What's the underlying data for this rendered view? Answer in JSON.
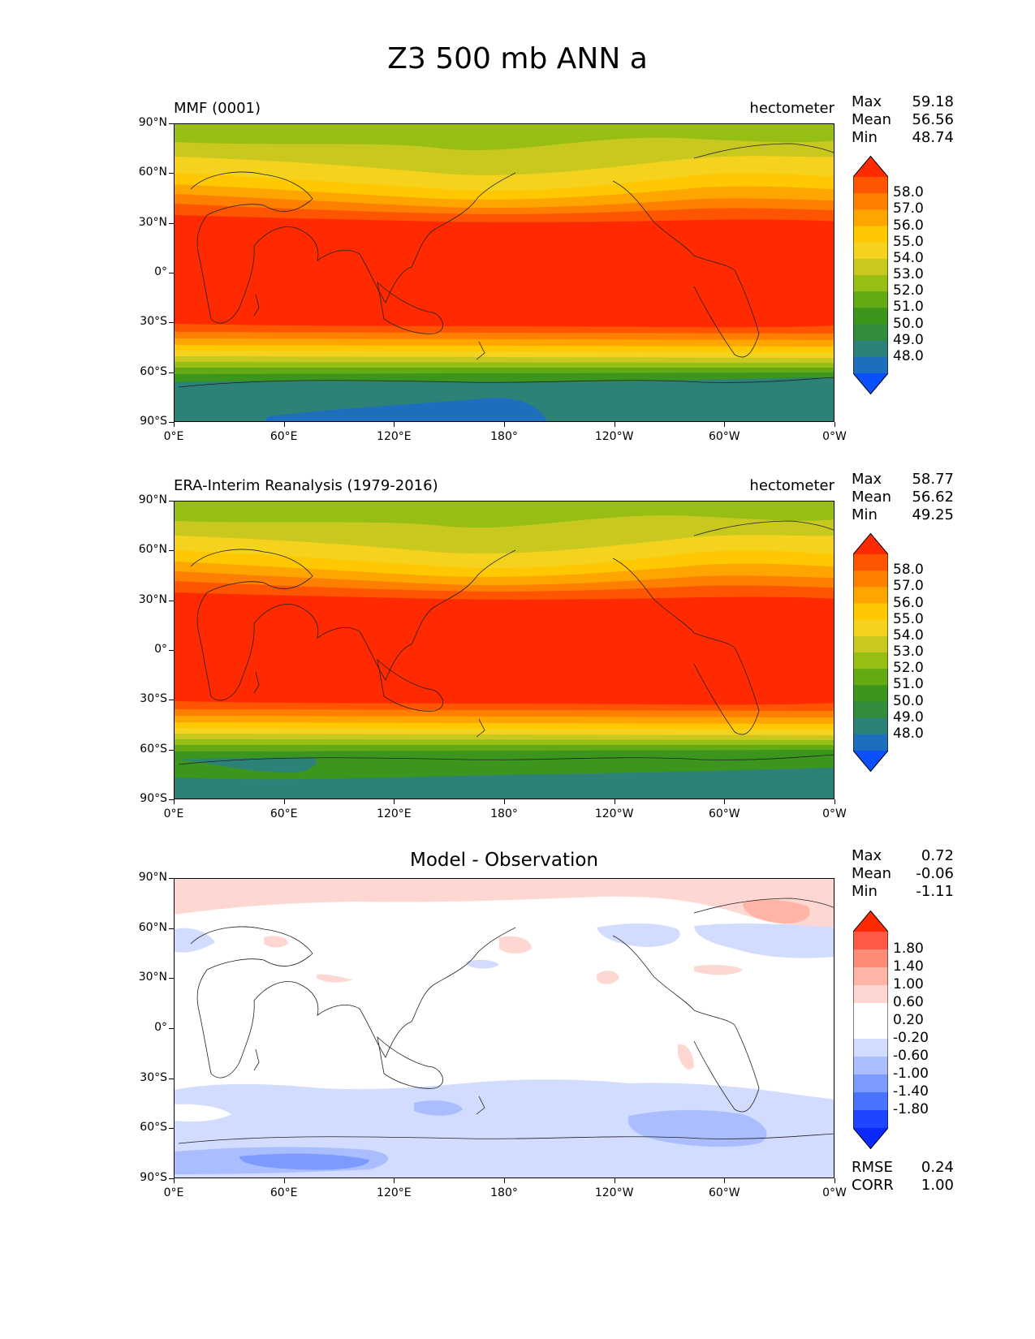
{
  "figure": {
    "title": "Z3 500 mb ANN a"
  },
  "panels": [
    {
      "name": "mmf",
      "title_left": "MMF (0001)",
      "title_center": "",
      "units": "hectometer",
      "stats": [
        {
          "label": "Max",
          "value": "59.18"
        },
        {
          "label": "Mean",
          "value": "56.56"
        },
        {
          "label": "Min",
          "value": "48.74"
        }
      ],
      "extra_stats": []
    },
    {
      "name": "era-interim",
      "title_left": "ERA-Interim Reanalysis (1979-2016)",
      "title_center": "",
      "units": "hectometer",
      "stats": [
        {
          "label": "Max",
          "value": "58.77"
        },
        {
          "label": "Mean",
          "value": "56.62"
        },
        {
          "label": "Min",
          "value": "49.25"
        }
      ],
      "extra_stats": []
    },
    {
      "name": "difference",
      "title_left": "",
      "title_center": "Model - Observation",
      "units": "",
      "stats": [
        {
          "label": "Max",
          "value": "0.72"
        },
        {
          "label": "Mean",
          "value": "-0.06"
        },
        {
          "label": "Min",
          "value": "-1.11"
        }
      ],
      "extra_stats": [
        {
          "label": "RMSE",
          "value": "0.24"
        },
        {
          "label": "CORR",
          "value": "1.00"
        }
      ]
    }
  ],
  "axes": {
    "lat_ticks": [
      "90°N",
      "60°N",
      "30°N",
      "0°",
      "30°S",
      "60°S",
      "90°S"
    ],
    "lon_ticks": [
      "0°E",
      "60°E",
      "120°E",
      "180°",
      "120°W",
      "60°W",
      "0°W"
    ]
  },
  "colorbars": {
    "field": {
      "labels": [
        "58.0",
        "57.0",
        "56.0",
        "55.0",
        "54.0",
        "53.0",
        "52.0",
        "51.0",
        "50.0",
        "49.0",
        "48.0"
      ],
      "colors_top_to_bottom": [
        "#ff2a00",
        "#ff5500",
        "#ff7f00",
        "#ffa500",
        "#ffc800",
        "#f5d21e",
        "#c8c81e",
        "#96be14",
        "#64aa14",
        "#3c961e",
        "#328c3c",
        "#2d8278",
        "#1e6ebe",
        "#0a50ff"
      ]
    },
    "diff": {
      "labels": [
        "1.80",
        "1.40",
        "1.00",
        "0.60",
        "0.20",
        "-0.20",
        "-0.60",
        "-1.00",
        "-1.40",
        "-1.80"
      ],
      "colors_top_to_bottom": [
        "#ff2a00",
        "#ff5a46",
        "#ff8c78",
        "#ffb4a5",
        "#ffd7d2",
        "#ffffff",
        "#ffffff",
        "#d2dcff",
        "#aabeff",
        "#7d9bff",
        "#4a73ff",
        "#1e46ff",
        "#0a28ff"
      ]
    }
  },
  "chart_data": [
    {
      "type": "heatmap",
      "title": "MMF (0001)",
      "units": "hectometer",
      "xlabel": "",
      "ylabel": "",
      "x_ticks": [
        "0°E",
        "60°E",
        "120°E",
        "180°",
        "120°W",
        "60°W",
        "0°W"
      ],
      "y_ticks": [
        "90°N",
        "60°N",
        "30°N",
        "0°",
        "30°S",
        "60°S",
        "90°S"
      ],
      "contour_levels": [
        48,
        49,
        50,
        51,
        52,
        53,
        53.5,
        54,
        55,
        56,
        57,
        58
      ],
      "zonal_profile": {
        "lat": [
          90,
          75,
          60,
          45,
          30,
          15,
          0,
          -15,
          -30,
          -45,
          -60,
          -75,
          -90
        ],
        "value": [
          53.0,
          53.2,
          54.2,
          56.5,
          58.3,
          58.6,
          58.6,
          58.6,
          58.2,
          56.0,
          51.8,
          49.9,
          49.0
        ]
      },
      "stats": {
        "max": 59.18,
        "mean": 56.56,
        "min": 48.74
      }
    },
    {
      "type": "heatmap",
      "title": "ERA-Interim Reanalysis (1979-2016)",
      "units": "hectometer",
      "xlabel": "",
      "ylabel": "",
      "x_ticks": [
        "0°E",
        "60°E",
        "120°E",
        "180°",
        "120°W",
        "60°W",
        "0°W"
      ],
      "y_ticks": [
        "90°N",
        "60°N",
        "30°N",
        "0°",
        "30°S",
        "60°S",
        "90°S"
      ],
      "contour_levels": [
        48,
        49,
        50,
        51,
        52,
        53,
        53.5,
        54,
        55,
        56,
        57,
        58
      ],
      "zonal_profile": {
        "lat": [
          90,
          75,
          60,
          45,
          30,
          15,
          0,
          -15,
          -30,
          -45,
          -60,
          -75,
          -90
        ],
        "value": [
          52.8,
          53.1,
          54.1,
          56.4,
          58.3,
          58.6,
          58.6,
          58.6,
          58.2,
          56.1,
          52.4,
          50.6,
          49.8
        ]
      },
      "stats": {
        "max": 58.77,
        "mean": 56.62,
        "min": 49.25
      }
    },
    {
      "type": "heatmap",
      "title": "Model - Observation",
      "units": "",
      "xlabel": "",
      "ylabel": "",
      "x_ticks": [
        "0°E",
        "60°E",
        "120°E",
        "180°",
        "120°W",
        "60°W",
        "0°W"
      ],
      "y_ticks": [
        "90°N",
        "60°N",
        "30°N",
        "0°",
        "30°S",
        "60°S",
        "90°S"
      ],
      "contour_levels": [
        -1.8,
        -1.4,
        -1.0,
        -0.6,
        -0.2,
        0.2,
        0.6,
        1.0,
        1.4,
        1.8
      ],
      "zonal_profile": {
        "lat": [
          90,
          75,
          60,
          45,
          30,
          15,
          0,
          -15,
          -30,
          -45,
          -60,
          -75,
          -90
        ],
        "value": [
          0.3,
          0.2,
          0.0,
          0.0,
          0.0,
          0.0,
          0.0,
          0.0,
          -0.1,
          -0.4,
          -0.6,
          -0.7,
          -0.7
        ]
      },
      "stats": {
        "max": 0.72,
        "mean": -0.06,
        "min": -1.11,
        "rmse": 0.24,
        "corr": 1.0
      }
    }
  ]
}
